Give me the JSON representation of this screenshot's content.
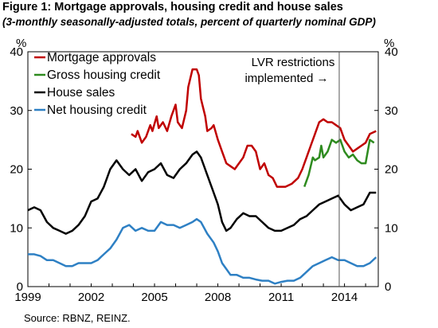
{
  "header": {
    "title": "Figure 1: Mortgage approvals, housing credit and house sales",
    "subtitle": "(3-monthly seasonally-adjusted totals, percent of quarterly nominal GDP)"
  },
  "footer": {
    "source": "Source: RBNZ, REINZ."
  },
  "chart_data": {
    "type": "line",
    "ylabel_left": "%",
    "ylabel_right": "%",
    "ylim": [
      0,
      40
    ],
    "xlim": [
      1999,
      2015.6
    ],
    "y_ticks": [
      0,
      10,
      20,
      30,
      40
    ],
    "x_ticks": [
      1999,
      2002,
      2005,
      2008,
      2011,
      2014
    ],
    "x_tick_labels": [
      "1999",
      "2002",
      "2005",
      "2008",
      "2011",
      "2014"
    ],
    "grid": false,
    "legend": "top-left",
    "annotation": {
      "text_line1": "LVR restrictions",
      "text_line2": "implemented →",
      "x": 2013.75
    },
    "series": [
      {
        "name": "Mortgage approvals",
        "color": "#c00000",
        "points": [
          [
            2003.9,
            26
          ],
          [
            2004.1,
            25.5
          ],
          [
            2004.2,
            26.5
          ],
          [
            2004.4,
            24.5
          ],
          [
            2004.6,
            25.5
          ],
          [
            2004.8,
            27.5
          ],
          [
            2004.9,
            26.5
          ],
          [
            2005.1,
            29
          ],
          [
            2005.2,
            27
          ],
          [
            2005.4,
            28
          ],
          [
            2005.6,
            26.5
          ],
          [
            2005.8,
            29
          ],
          [
            2006.0,
            31
          ],
          [
            2006.1,
            28
          ],
          [
            2006.3,
            27
          ],
          [
            2006.5,
            30
          ],
          [
            2006.6,
            34
          ],
          [
            2006.8,
            37
          ],
          [
            2007.0,
            37
          ],
          [
            2007.1,
            36
          ],
          [
            2007.2,
            32
          ],
          [
            2007.4,
            29
          ],
          [
            2007.5,
            26.5
          ],
          [
            2007.7,
            27
          ],
          [
            2007.8,
            27.5
          ],
          [
            2008.0,
            25
          ],
          [
            2008.2,
            23
          ],
          [
            2008.4,
            21
          ],
          [
            2008.6,
            20.5
          ],
          [
            2008.8,
            20
          ],
          [
            2009.0,
            21
          ],
          [
            2009.2,
            22
          ],
          [
            2009.4,
            24
          ],
          [
            2009.6,
            24
          ],
          [
            2009.8,
            23
          ],
          [
            2010.0,
            20
          ],
          [
            2010.2,
            21
          ],
          [
            2010.4,
            19
          ],
          [
            2010.6,
            18.5
          ],
          [
            2010.8,
            17
          ],
          [
            2011.0,
            17
          ],
          [
            2011.2,
            17
          ],
          [
            2011.5,
            17.5
          ],
          [
            2011.8,
            18.5
          ],
          [
            2012.0,
            20
          ],
          [
            2012.2,
            22
          ],
          [
            2012.4,
            24
          ],
          [
            2012.6,
            26
          ],
          [
            2012.8,
            28
          ],
          [
            2013.0,
            28.5
          ],
          [
            2013.2,
            28
          ],
          [
            2013.4,
            28
          ],
          [
            2013.6,
            27.5
          ],
          [
            2013.8,
            27
          ],
          [
            2014.0,
            25
          ],
          [
            2014.2,
            24
          ],
          [
            2014.4,
            23
          ],
          [
            2014.6,
            23.5
          ],
          [
            2014.8,
            24
          ],
          [
            2015.0,
            24.5
          ],
          [
            2015.2,
            26
          ],
          [
            2015.5,
            26.5
          ]
        ]
      },
      {
        "name": "Gross housing credit",
        "color": "#2e8b1f",
        "points": [
          [
            2012.1,
            17
          ],
          [
            2012.3,
            19
          ],
          [
            2012.5,
            22
          ],
          [
            2012.6,
            21.5
          ],
          [
            2012.8,
            22
          ],
          [
            2012.9,
            24
          ],
          [
            2013.0,
            22
          ],
          [
            2013.2,
            23
          ],
          [
            2013.4,
            25
          ],
          [
            2013.6,
            24.5
          ],
          [
            2013.8,
            25
          ],
          [
            2014.0,
            23
          ],
          [
            2014.2,
            22
          ],
          [
            2014.4,
            22.5
          ],
          [
            2014.6,
            21.5
          ],
          [
            2014.8,
            21
          ],
          [
            2015.0,
            21
          ],
          [
            2015.2,
            25
          ],
          [
            2015.4,
            24.5
          ]
        ]
      },
      {
        "name": "House sales",
        "color": "#000000",
        "points": [
          [
            1999,
            13
          ],
          [
            1999.3,
            13.5
          ],
          [
            1999.6,
            13
          ],
          [
            1999.9,
            11
          ],
          [
            2000.2,
            10
          ],
          [
            2000.5,
            9.5
          ],
          [
            2000.8,
            9
          ],
          [
            2001.1,
            9.5
          ],
          [
            2001.4,
            10.5
          ],
          [
            2001.7,
            12
          ],
          [
            2002.0,
            14.5
          ],
          [
            2002.3,
            15
          ],
          [
            2002.6,
            17
          ],
          [
            2002.9,
            20
          ],
          [
            2003.2,
            21.5
          ],
          [
            2003.5,
            20
          ],
          [
            2003.8,
            19
          ],
          [
            2004.1,
            20
          ],
          [
            2004.4,
            18
          ],
          [
            2004.7,
            19.5
          ],
          [
            2005.0,
            20
          ],
          [
            2005.3,
            21
          ],
          [
            2005.6,
            19
          ],
          [
            2005.9,
            18.5
          ],
          [
            2006.2,
            20
          ],
          [
            2006.5,
            21
          ],
          [
            2006.8,
            22.5
          ],
          [
            2007.0,
            23
          ],
          [
            2007.2,
            22
          ],
          [
            2007.5,
            19
          ],
          [
            2007.8,
            16
          ],
          [
            2008.0,
            14
          ],
          [
            2008.2,
            11
          ],
          [
            2008.4,
            9.5
          ],
          [
            2008.6,
            10
          ],
          [
            2008.9,
            11.5
          ],
          [
            2009.2,
            12.5
          ],
          [
            2009.5,
            12
          ],
          [
            2009.8,
            12
          ],
          [
            2010.1,
            11
          ],
          [
            2010.4,
            10
          ],
          [
            2010.7,
            9.5
          ],
          [
            2011.0,
            9.5
          ],
          [
            2011.3,
            10
          ],
          [
            2011.6,
            10.5
          ],
          [
            2011.9,
            11.5
          ],
          [
            2012.2,
            12
          ],
          [
            2012.5,
            13
          ],
          [
            2012.8,
            14
          ],
          [
            2013.1,
            14.5
          ],
          [
            2013.4,
            15
          ],
          [
            2013.7,
            15.5
          ],
          [
            2014.0,
            14
          ],
          [
            2014.3,
            13
          ],
          [
            2014.6,
            13.5
          ],
          [
            2014.9,
            14
          ],
          [
            2015.2,
            16
          ],
          [
            2015.5,
            16
          ]
        ]
      },
      {
        "name": "Net housing credit",
        "color": "#2e80c4",
        "points": [
          [
            1999,
            5.5
          ],
          [
            1999.3,
            5.5
          ],
          [
            1999.6,
            5.2
          ],
          [
            1999.9,
            4.5
          ],
          [
            2000.2,
            4.5
          ],
          [
            2000.5,
            4
          ],
          [
            2000.8,
            3.5
          ],
          [
            2001.1,
            3.5
          ],
          [
            2001.4,
            4
          ],
          [
            2001.7,
            4
          ],
          [
            2002.0,
            4
          ],
          [
            2002.3,
            4.5
          ],
          [
            2002.6,
            5.5
          ],
          [
            2002.9,
            6.5
          ],
          [
            2003.2,
            8
          ],
          [
            2003.5,
            10
          ],
          [
            2003.8,
            10.5
          ],
          [
            2004.1,
            9.5
          ],
          [
            2004.4,
            10
          ],
          [
            2004.7,
            9.5
          ],
          [
            2005.0,
            9.5
          ],
          [
            2005.3,
            11
          ],
          [
            2005.6,
            10.5
          ],
          [
            2005.9,
            10.5
          ],
          [
            2006.2,
            10
          ],
          [
            2006.5,
            10.5
          ],
          [
            2006.8,
            11
          ],
          [
            2007.0,
            11.5
          ],
          [
            2007.2,
            11
          ],
          [
            2007.5,
            9
          ],
          [
            2007.8,
            7.5
          ],
          [
            2008.0,
            6
          ],
          [
            2008.2,
            4
          ],
          [
            2008.4,
            3
          ],
          [
            2008.6,
            2
          ],
          [
            2008.9,
            2
          ],
          [
            2009.2,
            1.5
          ],
          [
            2009.5,
            1.5
          ],
          [
            2009.8,
            1.2
          ],
          [
            2010.1,
            1
          ],
          [
            2010.4,
            1
          ],
          [
            2010.7,
            0.5
          ],
          [
            2011.0,
            0.8
          ],
          [
            2011.3,
            1
          ],
          [
            2011.6,
            1
          ],
          [
            2011.9,
            1.5
          ],
          [
            2012.2,
            2.5
          ],
          [
            2012.5,
            3.5
          ],
          [
            2012.8,
            4
          ],
          [
            2013.1,
            4.5
          ],
          [
            2013.4,
            5
          ],
          [
            2013.7,
            4.5
          ],
          [
            2014.0,
            4.5
          ],
          [
            2014.3,
            4
          ],
          [
            2014.6,
            3.5
          ],
          [
            2014.9,
            3.5
          ],
          [
            2015.2,
            4
          ],
          [
            2015.5,
            5
          ]
        ]
      }
    ]
  }
}
